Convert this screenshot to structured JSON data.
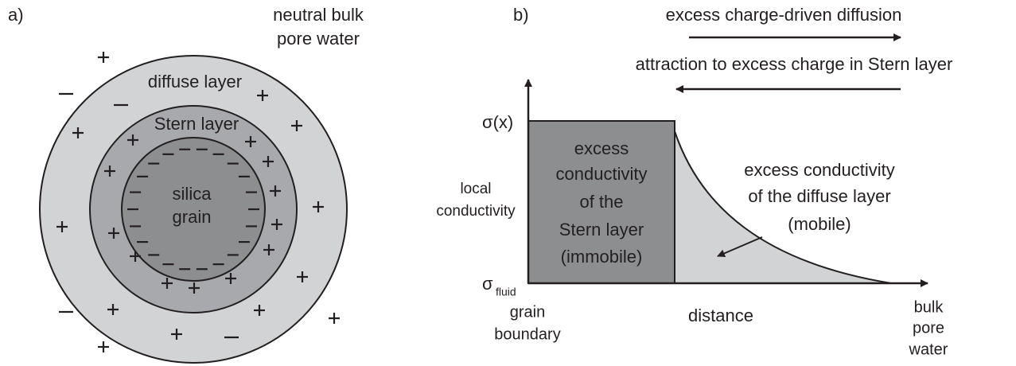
{
  "panel_a": {
    "label": "a)",
    "bulk_label": [
      "neutral bulk",
      "pore water"
    ],
    "diffuse_label": "diffuse layer",
    "stern_label": "Stern layer",
    "grain_label": [
      "silica",
      "grain"
    ]
  },
  "panel_b": {
    "label": "b)",
    "diffusion_label": "excess charge-driven diffusion",
    "attraction_label": "attraction to excess charge in Stern layer",
    "y_top_label": "σ(x)",
    "y_axis_label": [
      "local",
      "conductivity"
    ],
    "stern_region_label": [
      "excess",
      "conductivity",
      "of the",
      "Stern layer",
      "(immobile)"
    ],
    "diffuse_region_label": [
      "excess conductivity",
      "of the diffuse layer",
      "(mobile)"
    ],
    "y_origin_label": {
      "symbol": "σ",
      "subscript": "fluid"
    },
    "origin_label": [
      "grain",
      "boundary"
    ],
    "x_axis_label": "distance",
    "x_end_label": [
      "bulk",
      "pore",
      "water"
    ]
  }
}
